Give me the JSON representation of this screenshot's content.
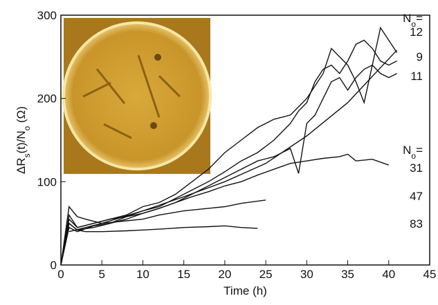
{
  "chart_data": {
    "type": "line",
    "x_label": "Time (h)",
    "y_label": [
      {
        "text": "ΔR"
      },
      {
        "text": "s",
        "sub": true
      },
      {
        "text": "(t)/N"
      },
      {
        "text": "o",
        "sub": true
      },
      {
        "text": " (Ω)"
      }
    ],
    "xlim": [
      0,
      45
    ],
    "xticks": [
      0,
      5,
      10,
      15,
      20,
      25,
      30,
      35,
      40,
      45
    ],
    "ylim": [
      0,
      300
    ],
    "yticks": [
      0,
      100,
      200,
      300
    ],
    "annotations": [
      {
        "parts": [
          {
            "text": "N"
          },
          {
            "text": "o",
            "sub": true
          },
          {
            "text": "="
          }
        ]
      },
      {
        "parts": [
          {
            "text": "N"
          },
          {
            "text": "o",
            "sub": true
          },
          {
            "text": "="
          }
        ]
      }
    ],
    "series": [
      {
        "name": "12",
        "color": "#111111",
        "x": [
          0,
          1,
          2,
          4,
          6,
          8,
          10,
          12,
          14,
          16,
          18,
          20,
          22,
          24,
          26,
          28,
          29,
          30,
          31,
          32,
          33,
          34,
          35,
          36,
          37,
          38,
          39,
          40,
          41
        ],
        "values": [
          0,
          55,
          45,
          50,
          55,
          60,
          70,
          75,
          85,
          100,
          115,
          135,
          150,
          165,
          175,
          180,
          190,
          200,
          215,
          230,
          260,
          250,
          240,
          220,
          195,
          240,
          285,
          270,
          255
        ]
      },
      {
        "name": "9",
        "color": "#111111",
        "x": [
          0,
          1,
          2,
          4,
          6,
          8,
          10,
          12,
          14,
          16,
          18,
          20,
          22,
          24,
          26,
          28,
          29,
          30,
          31,
          32,
          33,
          34,
          35,
          36,
          37,
          38,
          39,
          40,
          41
        ],
        "values": [
          0,
          45,
          40,
          47,
          50,
          58,
          65,
          70,
          80,
          90,
          100,
          112,
          125,
          135,
          150,
          170,
          185,
          195,
          220,
          235,
          240,
          230,
          245,
          265,
          270,
          260,
          245,
          240,
          245
        ]
      },
      {
        "name": "11",
        "color": "#111111",
        "x": [
          0,
          1,
          2,
          4,
          6,
          8,
          10,
          12,
          14,
          16,
          18,
          20,
          22,
          24,
          26,
          28,
          29,
          30,
          31,
          32,
          33,
          34,
          35,
          36,
          37,
          38,
          39,
          40,
          41
        ],
        "values": [
          0,
          50,
          42,
          45,
          50,
          55,
          62,
          68,
          75,
          85,
          95,
          105,
          115,
          125,
          130,
          140,
          110,
          170,
          180,
          200,
          220,
          225,
          210,
          225,
          235,
          240,
          230,
          225,
          230
        ]
      },
      {
        "name": "31",
        "color": "#111111",
        "x": [
          0,
          1,
          2,
          4,
          6,
          8,
          10,
          12,
          14,
          16,
          18,
          20,
          22,
          24,
          26,
          28,
          30,
          32,
          34,
          35,
          36,
          38,
          40
        ],
        "values": [
          0,
          60,
          45,
          50,
          55,
          58,
          62,
          68,
          75,
          82,
          88,
          95,
          100,
          108,
          115,
          122,
          125,
          128,
          130,
          133,
          125,
          127,
          120
        ]
      },
      {
        "name": "47",
        "color": "#111111",
        "x": [
          0,
          1,
          2,
          3,
          5,
          8,
          10,
          12,
          15,
          18,
          20,
          22,
          25
        ],
        "values": [
          0,
          70,
          58,
          55,
          50,
          53,
          55,
          60,
          65,
          68,
          70,
          74,
          78
        ]
      },
      {
        "name": "83",
        "color": "#111111",
        "x": [
          0,
          1,
          2,
          3,
          5,
          8,
          10,
          12,
          15,
          18,
          20,
          22,
          24
        ],
        "values": [
          0,
          50,
          42,
          40,
          40,
          41,
          42,
          43,
          45,
          46,
          47,
          45,
          44
        ]
      },
      {
        "name": null,
        "color": "#111111",
        "x": [
          1,
          5,
          10,
          15,
          20,
          25,
          30,
          35,
          41
        ],
        "values": [
          40,
          50,
          65,
          82,
          100,
          122,
          155,
          195,
          258
        ]
      }
    ]
  }
}
